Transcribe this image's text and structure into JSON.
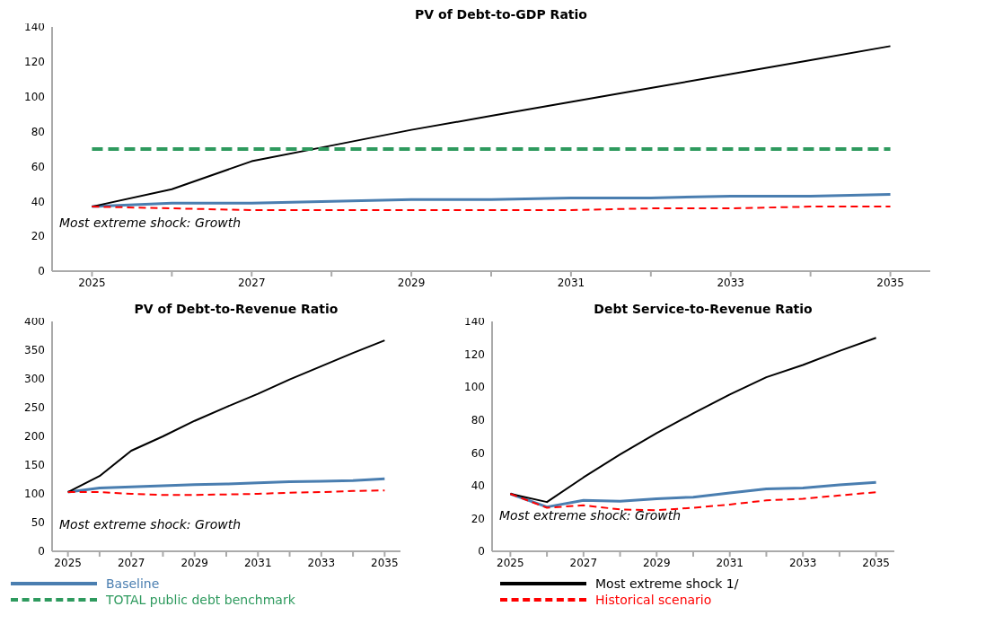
{
  "chart_data": [
    {
      "type": "line",
      "title": "PV of Debt-to-GDP Ratio",
      "categories": [
        "2025",
        null,
        "2027",
        null,
        "2029",
        null,
        "2031",
        null,
        "2033",
        null,
        "2035"
      ],
      "ylim": [
        0,
        140
      ],
      "yticks": [
        0,
        20,
        40,
        60,
        80,
        100,
        120,
        140
      ],
      "grid": false,
      "legend": "bottom",
      "marker": "none",
      "annotations": [
        "Most extreme shock: Growth"
      ],
      "series": [
        {
          "name": "Baseline",
          "color": "#4a7eb0",
          "line_style": "solid",
          "values": [
            37,
            39,
            39,
            40,
            41,
            41,
            42,
            42,
            43,
            43,
            44
          ]
        },
        {
          "name": "Most extreme shock 1/",
          "color": "#000000",
          "line_style": "solid",
          "values": [
            37,
            47,
            63,
            72,
            81,
            89,
            97,
            105,
            113,
            121,
            129
          ]
        },
        {
          "name": "TOTAL public debt benchmark",
          "color": "#2e9a5e",
          "line_style": "dashed",
          "values": [
            70,
            70,
            70,
            70,
            70,
            70,
            70,
            70,
            70,
            70,
            70
          ]
        },
        {
          "name": "Historical scenario",
          "color": "#ff0000",
          "line_style": "dashed",
          "values": [
            37,
            36,
            35,
            35,
            35,
            35,
            35,
            36,
            36,
            37,
            37
          ]
        }
      ]
    },
    {
      "type": "line",
      "title": "PV of Debt-to-Revenue Ratio",
      "categories": [
        "2025",
        null,
        "2027",
        null,
        "2029",
        null,
        "2031",
        null,
        "2033",
        null,
        "2035"
      ],
      "ylim": [
        0,
        400
      ],
      "yticks": [
        0,
        50,
        100,
        150,
        200,
        250,
        300,
        350,
        400
      ],
      "grid": false,
      "marker": "none",
      "annotations": [
        "Most extreme shock: Growth"
      ],
      "series": [
        {
          "color": "#4a7eb0",
          "line_style": "solid",
          "values": [
            103,
            110,
            112,
            114,
            116,
            117,
            119,
            121,
            122,
            123,
            126
          ]
        },
        {
          "color": "#000000",
          "line_style": "solid",
          "values": [
            103,
            131,
            175,
            200,
            227,
            251,
            274,
            299,
            322,
            345,
            367
          ]
        },
        {
          "color": "#ff0000",
          "line_style": "dashed",
          "values": [
            103,
            103,
            100,
            98,
            98,
            99,
            100,
            102,
            103,
            105,
            106
          ]
        }
      ]
    },
    {
      "type": "line",
      "title": "Debt Service-to-Revenue Ratio",
      "categories": [
        "2025",
        null,
        "2027",
        null,
        "2029",
        null,
        "2031",
        null,
        "2033",
        null,
        "2035"
      ],
      "ylim": [
        0,
        140
      ],
      "yticks": [
        0,
        20,
        40,
        60,
        80,
        100,
        120,
        140
      ],
      "grid": false,
      "marker": "none",
      "annotations": [
        "Most extreme shock: Growth"
      ],
      "series": [
        {
          "color": "#4a7eb0",
          "line_style": "solid",
          "values": [
            35,
            27,
            31,
            30.5,
            32,
            33,
            35.5,
            38,
            38.5,
            40.5,
            42
          ]
        },
        {
          "color": "#000000",
          "line_style": "solid",
          "values": [
            35,
            30,
            45,
            59,
            72,
            84,
            95.5,
            106,
            113.5,
            122,
            130
          ]
        },
        {
          "color": "#ff0000",
          "line_style": "dashed",
          "values": [
            35,
            26.5,
            28,
            25.5,
            25,
            26.5,
            28.5,
            31,
            32,
            34,
            36
          ]
        }
      ]
    }
  ]
}
